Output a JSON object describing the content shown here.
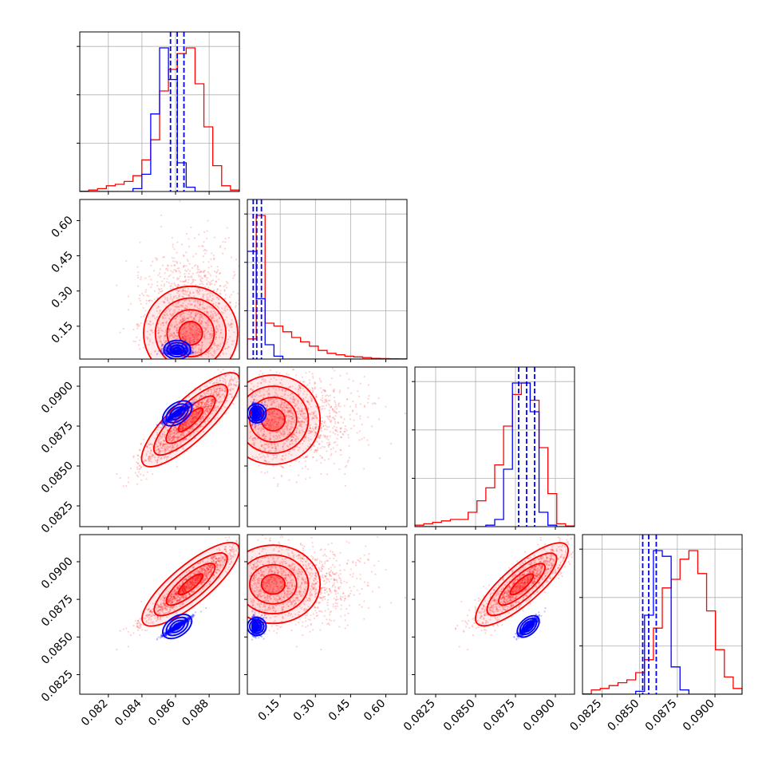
{
  "chart_data": {
    "type": "scatter",
    "layout": "corner-plot",
    "parameters": [
      {
        "ticks": [
          0.082,
          0.084,
          0.086,
          0.088
        ],
        "tick_labels": [
          "0.082",
          "0.084",
          "0.086",
          "0.088"
        ],
        "range": [
          0.0803,
          0.0898
        ]
      },
      {
        "ticks": [
          0.15,
          0.3,
          0.45,
          0.6
        ],
        "tick_labels": [
          "0.15",
          "0.30",
          "0.45",
          "0.60"
        ],
        "range": [
          0.01,
          0.69
        ]
      },
      {
        "ticks": [
          0.0825,
          0.085,
          0.0875,
          0.09
        ],
        "tick_labels": [
          "0.0825",
          "0.0850",
          "0.0875",
          "0.0900"
        ],
        "range": [
          0.0812,
          0.0912
        ]
      },
      {
        "ticks": [
          0.0825,
          0.085,
          0.0875,
          0.09
        ],
        "tick_labels": [
          "0.0825",
          "0.0850",
          "0.0875",
          "0.0900"
        ],
        "range": [
          0.0812,
          0.0918
        ]
      }
    ],
    "colors": {
      "red": "#ff0000",
      "blue": "#0000ff",
      "frame": "#000000",
      "grid": "#b0b0b0"
    },
    "series": [
      {
        "color": "#ff0000",
        "mean": [
          0.0869,
          0.12,
          0.0879,
          0.0885
        ],
        "sd": [
          0.0014,
          0.1,
          0.0014,
          0.0013
        ],
        "hist": [
          [
            0.002,
            0.01,
            0.02,
            0.04,
            0.05,
            0.07,
            0.11,
            0.22,
            0.36,
            0.7,
            0.85,
            0.96,
            1.0,
            0.75,
            0.45,
            0.18,
            0.04,
            0.01
          ],
          [
            0.14,
            1.0,
            0.25,
            0.23,
            0.19,
            0.15,
            0.12,
            0.09,
            0.06,
            0.04,
            0.03,
            0.02,
            0.015,
            0.01,
            0.005,
            0.003,
            0.002,
            0.001
          ],
          [
            0.01,
            0.02,
            0.03,
            0.04,
            0.05,
            0.05,
            0.1,
            0.18,
            0.27,
            0.43,
            0.7,
            0.92,
            1.0,
            0.88,
            0.55,
            0.23,
            0.02,
            0.005
          ],
          [
            0.002,
            0.03,
            0.04,
            0.06,
            0.08,
            0.1,
            0.15,
            0.24,
            0.46,
            0.74,
            0.8,
            0.94,
            1.0,
            0.84,
            0.58,
            0.31,
            0.12,
            0.04
          ]
        ]
      },
      {
        "color": "#0000ff",
        "mean": [
          0.0861,
          0.05,
          0.0883,
          0.0857
        ],
        "sd": [
          0.0004,
          0.02,
          0.0003,
          0.0003
        ],
        "quantile_lines": [
          [
            0.0857,
            0.0861,
            0.0865
          ],
          [
            0.035,
            0.05,
            0.07
          ],
          [
            0.0877,
            0.0882,
            0.0887
          ],
          [
            0.0852,
            0.0856,
            0.0861
          ]
        ],
        "hist": [
          [
            0,
            0,
            0,
            0,
            0,
            0,
            0.02,
            0.12,
            0.54,
            1.0,
            0.78,
            0.2,
            0.03,
            0,
            0,
            0,
            0,
            0
          ],
          [
            0.75,
            0.42,
            0.1,
            0.02,
            0,
            0,
            0,
            0,
            0,
            0,
            0,
            0,
            0,
            0,
            0,
            0,
            0,
            0
          ],
          [
            0,
            0,
            0,
            0,
            0,
            0,
            0,
            0,
            0.01,
            0.05,
            0.4,
            1.0,
            1.0,
            0.8,
            0.1,
            0.01,
            0,
            0
          ],
          [
            0,
            0,
            0,
            0,
            0,
            0,
            0.02,
            0.55,
            1.0,
            0.96,
            0.19,
            0.03,
            0,
            0,
            0,
            0,
            0,
            0
          ]
        ]
      }
    ]
  }
}
